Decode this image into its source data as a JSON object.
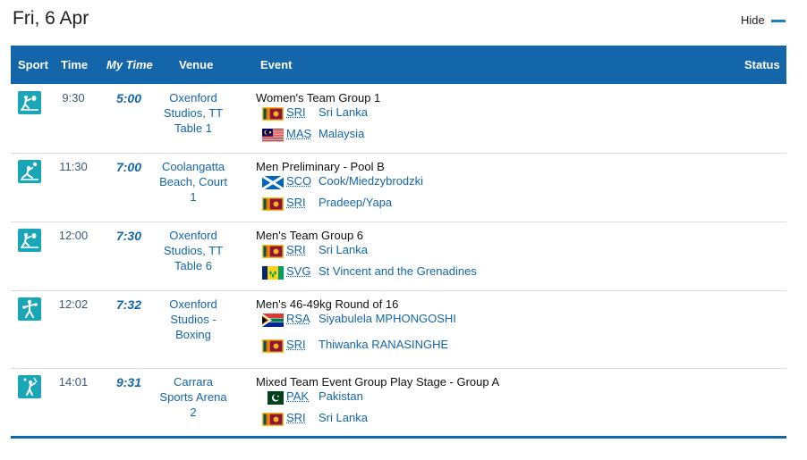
{
  "day": {
    "title": "Fri, 6 Apr",
    "hide_label": "Hide"
  },
  "columns": {
    "sport": "Sport",
    "time": "Time",
    "mytime": "My Time",
    "venue": "Venue",
    "event": "Event",
    "status": "Status"
  },
  "rows": [
    {
      "time": "9:30",
      "mytime": "5:00",
      "venue_lines": [
        "Oxenford",
        "Studios, TT",
        "Table 1"
      ],
      "event": "Women's Team Group 1",
      "sport_icon": "table-tennis-icon",
      "competitors": [
        {
          "code": "SRI",
          "name": "Sri Lanka",
          "flag": "sri-lanka"
        },
        {
          "code": "MAS",
          "name": "Malaysia",
          "flag": "malaysia"
        }
      ]
    },
    {
      "time": "11:30",
      "mytime": "7:00",
      "venue_lines": [
        "Coolangatta",
        "Beach, Court",
        "1"
      ],
      "event": "Men Preliminary - Pool B",
      "sport_icon": "beach-volleyball-icon",
      "competitors": [
        {
          "code": "SCO",
          "name": "Cook/Miedzybrodzki",
          "flag": "scotland"
        },
        {
          "code": "SRI",
          "name": "Pradeep/Yapa",
          "flag": "sri-lanka"
        }
      ]
    },
    {
      "time": "12:00",
      "mytime": "7:30",
      "venue_lines": [
        "Oxenford",
        "Studios, TT",
        "Table 6"
      ],
      "event": "Men's Team Group 6",
      "sport_icon": "table-tennis-icon",
      "competitors": [
        {
          "code": "SRI",
          "name": "Sri Lanka",
          "flag": "sri-lanka"
        },
        {
          "code": "SVG",
          "name": "St Vincent and the Grenadines",
          "flag": "st-vincent"
        }
      ]
    },
    {
      "time": "12:02",
      "mytime": "7:32",
      "venue_lines": [
        "Oxenford",
        "Studios -",
        "Boxing"
      ],
      "event": "Men's 46-49kg Round of 16",
      "sport_icon": "boxing-icon",
      "competitors": [
        {
          "code": "RSA",
          "name": "Siyabulela MPHONGOSHI",
          "flag": "south-africa"
        },
        {
          "code": "SRI",
          "name": "Thiwanka RANASINGHE",
          "flag": "sri-lanka"
        }
      ]
    },
    {
      "time": "14:01",
      "mytime": "9:31",
      "venue_lines": [
        "Carrara",
        "Sports Arena",
        "2"
      ],
      "event": "Mixed Team Event Group Play Stage - Group A",
      "sport_icon": "badminton-icon",
      "competitors": [
        {
          "code": "PAK",
          "name": "Pakistan",
          "flag": "pakistan"
        },
        {
          "code": "SRI",
          "name": "Sri Lanka",
          "flag": "sri-lanka"
        }
      ]
    }
  ],
  "colors": {
    "header_bg": "#1466ab",
    "icon_bg": "#1aa6b7",
    "link": "#1466ab"
  }
}
